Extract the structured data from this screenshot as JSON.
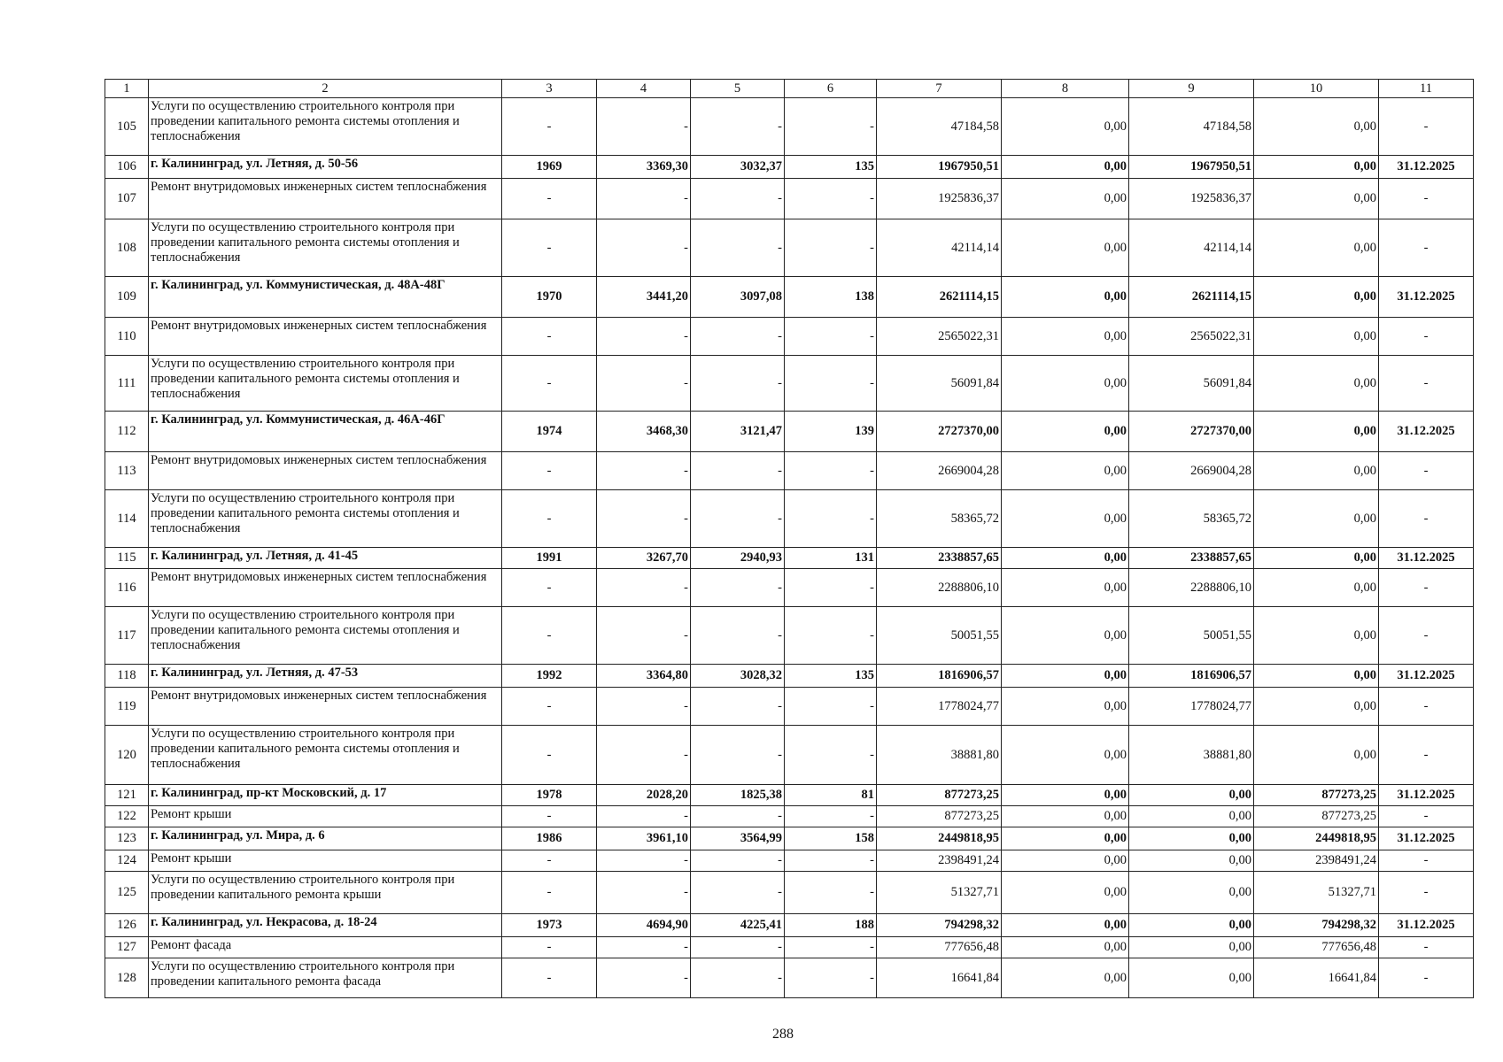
{
  "table": {
    "header": [
      "1",
      "2",
      "3",
      "4",
      "5",
      "6",
      "7",
      "8",
      "9",
      "10",
      "11"
    ],
    "rows": [
      {
        "bold": false,
        "cells": [
          "105",
          "Услуги по осуществлению строительного контроля при проведении капитального ремонта системы отопления и теплоснабжения",
          "-",
          "-",
          "-",
          "-",
          "47184,58",
          "0,00",
          "47184,58",
          "0,00",
          "-"
        ]
      },
      {
        "bold": true,
        "cells": [
          "106",
          "г. Калининград, ул. Летняя, д. 50-56",
          "1969",
          "3369,30",
          "3032,37",
          "135",
          "1967950,51",
          "0,00",
          "1967950,51",
          "0,00",
          "31.12.2025"
        ]
      },
      {
        "bold": false,
        "cells": [
          "107",
          "Ремонт внутридомовых инженерных систем теплоснабжения",
          "-",
          "-",
          "-",
          "-",
          "1925836,37",
          "0,00",
          "1925836,37",
          "0,00",
          "-"
        ]
      },
      {
        "bold": false,
        "cells": [
          "108",
          "Услуги по осуществлению строительного контроля при проведении капитального ремонта системы отопления и теплоснабжения",
          "-",
          "-",
          "-",
          "-",
          "42114,14",
          "0,00",
          "42114,14",
          "0,00",
          "-"
        ]
      },
      {
        "bold": true,
        "cells": [
          "109",
          "г. Калининград, ул. Коммунистическая, д. 48А-48Г",
          "1970",
          "3441,20",
          "3097,08",
          "138",
          "2621114,15",
          "0,00",
          "2621114,15",
          "0,00",
          "31.12.2025"
        ]
      },
      {
        "bold": false,
        "cells": [
          "110",
          "Ремонт внутридомовых инженерных систем теплоснабжения",
          "-",
          "-",
          "-",
          "-",
          "2565022,31",
          "0,00",
          "2565022,31",
          "0,00",
          "-"
        ]
      },
      {
        "bold": false,
        "cells": [
          "111",
          "Услуги по осуществлению строительного контроля при проведении капитального ремонта системы отопления и теплоснабжения",
          "-",
          "-",
          "-",
          "-",
          "56091,84",
          "0,00",
          "56091,84",
          "0,00",
          "-"
        ]
      },
      {
        "bold": true,
        "cells": [
          "112",
          "г. Калининград, ул. Коммунистическая, д. 46А-46Г",
          "1974",
          "3468,30",
          "3121,47",
          "139",
          "2727370,00",
          "0,00",
          "2727370,00",
          "0,00",
          "31.12.2025"
        ]
      },
      {
        "bold": false,
        "cells": [
          "113",
          "Ремонт внутридомовых инженерных систем теплоснабжения",
          "-",
          "-",
          "-",
          "-",
          "2669004,28",
          "0,00",
          "2669004,28",
          "0,00",
          "-"
        ]
      },
      {
        "bold": false,
        "cells": [
          "114",
          "Услуги по осуществлению строительного контроля при проведении капитального ремонта системы отопления и теплоснабжения",
          "-",
          "-",
          "-",
          "-",
          "58365,72",
          "0,00",
          "58365,72",
          "0,00",
          "-"
        ]
      },
      {
        "bold": true,
        "cells": [
          "115",
          "г. Калининград, ул. Летняя, д. 41-45",
          "1991",
          "3267,70",
          "2940,93",
          "131",
          "2338857,65",
          "0,00",
          "2338857,65",
          "0,00",
          "31.12.2025"
        ]
      },
      {
        "bold": false,
        "cells": [
          "116",
          "Ремонт внутридомовых инженерных систем теплоснабжения",
          "-",
          "-",
          "-",
          "-",
          "2288806,10",
          "0,00",
          "2288806,10",
          "0,00",
          "-"
        ]
      },
      {
        "bold": false,
        "cells": [
          "117",
          "Услуги по осуществлению строительного контроля при проведении капитального ремонта системы отопления и теплоснабжения",
          "-",
          "-",
          "-",
          "-",
          "50051,55",
          "0,00",
          "50051,55",
          "0,00",
          "-"
        ]
      },
      {
        "bold": true,
        "cells": [
          "118",
          "г. Калининград, ул. Летняя, д. 47-53",
          "1992",
          "3364,80",
          "3028,32",
          "135",
          "1816906,57",
          "0,00",
          "1816906,57",
          "0,00",
          "31.12.2025"
        ]
      },
      {
        "bold": false,
        "cells": [
          "119",
          "Ремонт внутридомовых инженерных систем теплоснабжения",
          "-",
          "-",
          "-",
          "-",
          "1778024,77",
          "0,00",
          "1778024,77",
          "0,00",
          "-"
        ]
      },
      {
        "bold": false,
        "cells": [
          "120",
          "Услуги по осуществлению строительного контроля при проведении капитального ремонта системы отопления и теплоснабжения",
          "-",
          "-",
          "-",
          "-",
          "38881,80",
          "0,00",
          "38881,80",
          "0,00",
          "-"
        ]
      },
      {
        "bold": true,
        "cells": [
          "121",
          "г. Калининград, пр-кт Московский, д. 17",
          "1978",
          "2028,20",
          "1825,38",
          "81",
          "877273,25",
          "0,00",
          "0,00",
          "877273,25",
          "31.12.2025"
        ]
      },
      {
        "bold": false,
        "cells": [
          "122",
          "Ремонт крыши",
          "-",
          "-",
          "-",
          "-",
          "877273,25",
          "0,00",
          "0,00",
          "877273,25",
          "-"
        ]
      },
      {
        "bold": true,
        "cells": [
          "123",
          "г. Калининград, ул. Мира, д. 6",
          "1986",
          "3961,10",
          "3564,99",
          "158",
          "2449818,95",
          "0,00",
          "0,00",
          "2449818,95",
          "31.12.2025"
        ]
      },
      {
        "bold": false,
        "cells": [
          "124",
          "Ремонт крыши",
          "-",
          "-",
          "-",
          "-",
          "2398491,24",
          "0,00",
          "0,00",
          "2398491,24",
          "-"
        ]
      },
      {
        "bold": false,
        "cells": [
          "125",
          "Услуги по осуществлению строительного контроля при проведении капитального ремонта крыши",
          "-",
          "-",
          "-",
          "-",
          "51327,71",
          "0,00",
          "0,00",
          "51327,71",
          "-"
        ]
      },
      {
        "bold": true,
        "cells": [
          "126",
          "г. Калининград, ул. Некрасова, д. 18-24",
          "1973",
          "4694,90",
          "4225,41",
          "188",
          "794298,32",
          "0,00",
          "0,00",
          "794298,32",
          "31.12.2025"
        ]
      },
      {
        "bold": false,
        "cells": [
          "127",
          "Ремонт фасада",
          "-",
          "-",
          "-",
          "-",
          "777656,48",
          "0,00",
          "0,00",
          "777656,48",
          "-"
        ]
      },
      {
        "bold": false,
        "cells": [
          "128",
          "Услуги по осуществлению строительного контроля при проведении капитального ремонта фасада",
          "-",
          "-",
          "-",
          "-",
          "16641,84",
          "0,00",
          "0,00",
          "16641,84",
          "-"
        ]
      }
    ]
  },
  "page_number": "288"
}
